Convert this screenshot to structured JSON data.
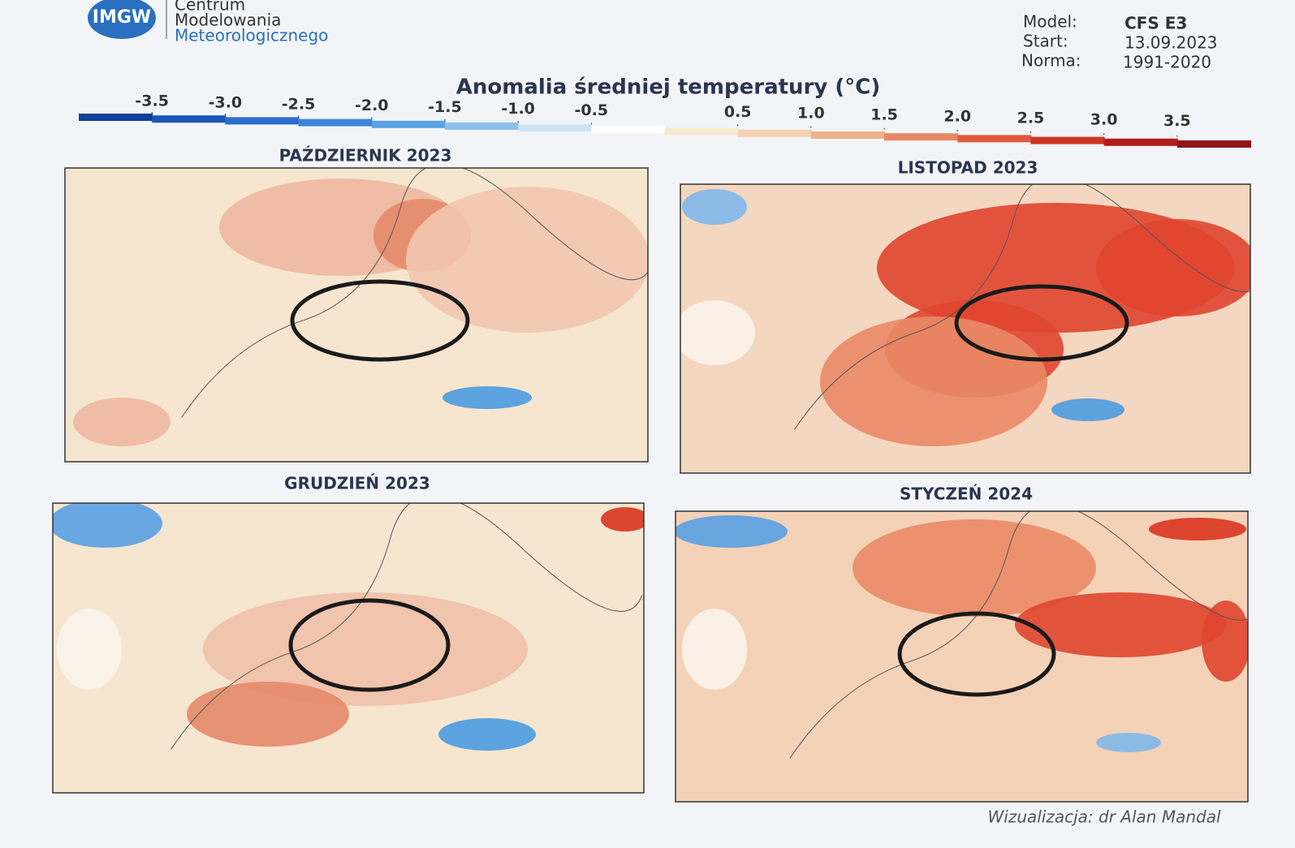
{
  "header": {
    "logo": "IMGW",
    "org_line1": "Centrum",
    "org_line2": "Modelowania",
    "org_line3": "Meteorologicznego"
  },
  "meta": {
    "model_label": "Model:",
    "model": "CFS E3",
    "start_label": "Start:",
    "start": "13.09.2023",
    "norm_label": "Norma:",
    "norm": "1991-2020"
  },
  "title": "Anomalia średniej temperatury (°C)",
  "scale": {
    "ticks": [
      {
        "value": -3.5,
        "label": "-3.5"
      },
      {
        "value": -3,
        "label": "-3.0"
      },
      {
        "value": -2.5,
        "label": "-2.5"
      },
      {
        "value": -2,
        "label": "-2.0"
      },
      {
        "value": -1.5,
        "label": "-1.5"
      },
      {
        "value": -1,
        "label": "-1.0"
      },
      {
        "value": -0.5,
        "label": "-0.5"
      },
      {
        "value": 0.5,
        "label": "0.5"
      },
      {
        "value": 1,
        "label": "1.0"
      },
      {
        "value": 1.5,
        "label": "1.5"
      },
      {
        "value": 2,
        "label": "2.0"
      },
      {
        "value": 2.5,
        "label": "2.5"
      },
      {
        "value": 3,
        "label": "3.0"
      },
      {
        "value": 3.5,
        "label": "3.5"
      }
    ]
  },
  "maps": [
    {
      "title": "PAŹDZIERNIK 2023"
    },
    {
      "title": "LISTOPAD 2023"
    },
    {
      "title": "GRUDZIEŃ 2023"
    },
    {
      "title": "STYCZEŃ 2024"
    }
  ],
  "credit": "Wizualizacja: dr Alan Mandal"
}
